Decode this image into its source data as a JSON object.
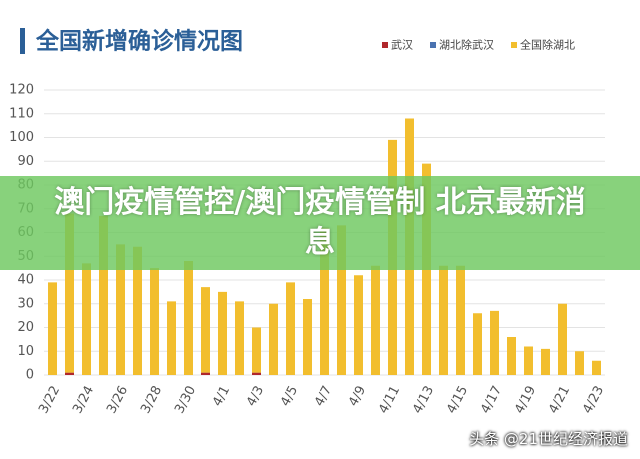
{
  "chart_data": {
    "type": "bar",
    "stacked": true,
    "title": "全国新增确诊情况图",
    "categories": [
      "3/22",
      null,
      "3/24",
      null,
      "3/26",
      null,
      "3/28",
      null,
      "3/30",
      null,
      "4/1",
      null,
      "4/3",
      null,
      "4/5",
      null,
      "4/7",
      null,
      "4/9",
      null,
      "4/11",
      null,
      "4/13",
      null,
      "4/15",
      null,
      "4/17",
      null,
      "4/19",
      null,
      "4/21",
      null,
      "4/23"
    ],
    "series": [
      {
        "name": "武汉",
        "color": "#b0272c",
        "values": [
          0,
          1,
          0,
          0,
          0,
          0,
          0,
          0,
          0,
          1,
          0,
          0,
          1,
          0,
          0,
          0,
          0,
          0,
          0,
          0,
          0,
          0,
          0,
          0,
          0,
          0,
          0,
          0,
          0,
          0,
          0,
          0,
          0
        ]
      },
      {
        "name": "湖北除武汉",
        "color": "#4a72b0",
        "values": [
          0,
          0,
          0,
          0,
          0,
          0,
          0,
          0,
          0,
          0,
          0,
          0,
          0,
          0,
          0,
          0,
          0,
          0,
          0,
          0,
          0,
          0,
          0,
          0,
          0,
          0,
          0,
          0,
          0,
          0,
          0,
          0,
          0
        ]
      },
      {
        "name": "全国除湖北",
        "color": "#f2be2e",
        "values": [
          39,
          67,
          47,
          67,
          55,
          54,
          45,
          31,
          48,
          36,
          35,
          31,
          19,
          30,
          39,
          32,
          62,
          63,
          42,
          46,
          99,
          108,
          89,
          46,
          46,
          26,
          27,
          16,
          12,
          11,
          30,
          10,
          6
        ]
      }
    ],
    "ylim": [
      0,
      120
    ],
    "yticks": [
      0,
      10,
      20,
      30,
      40,
      50,
      60,
      70,
      80,
      90,
      100,
      110,
      120
    ],
    "grid": true
  },
  "overlay": {
    "banner": "澳门疫情管控/澳门疫情管制 北京最新消息",
    "watermark": "头条 @21世纪经济报道"
  }
}
